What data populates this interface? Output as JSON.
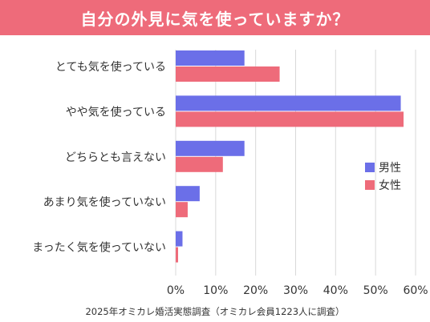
{
  "chart_data": {
    "type": "bar",
    "orientation": "horizontal",
    "title": "自分の外見に気を使っていますか？",
    "categories": [
      "とても気を使っている",
      "やや気を使っている",
      "どちらとも言えない",
      "あまり気を使っていない",
      "まったく気を使っていない"
    ],
    "series": [
      {
        "name": "男性",
        "color": "#6b6fe8",
        "values": [
          17.2,
          56.3,
          17.2,
          6.0,
          1.7
        ]
      },
      {
        "name": "女性",
        "color": "#ee6b7a",
        "values": [
          26.0,
          57.0,
          11.8,
          3.0,
          0.6
        ]
      }
    ],
    "xlim": [
      0,
      60
    ],
    "xticks": [
      "0%",
      "10%",
      "20%",
      "30%",
      "40%",
      "50%",
      "60%"
    ],
    "grid": true,
    "legend": "right"
  },
  "footer": "2025年オミカレ婚活実態調査（オミカレ会員1223人に調査）"
}
